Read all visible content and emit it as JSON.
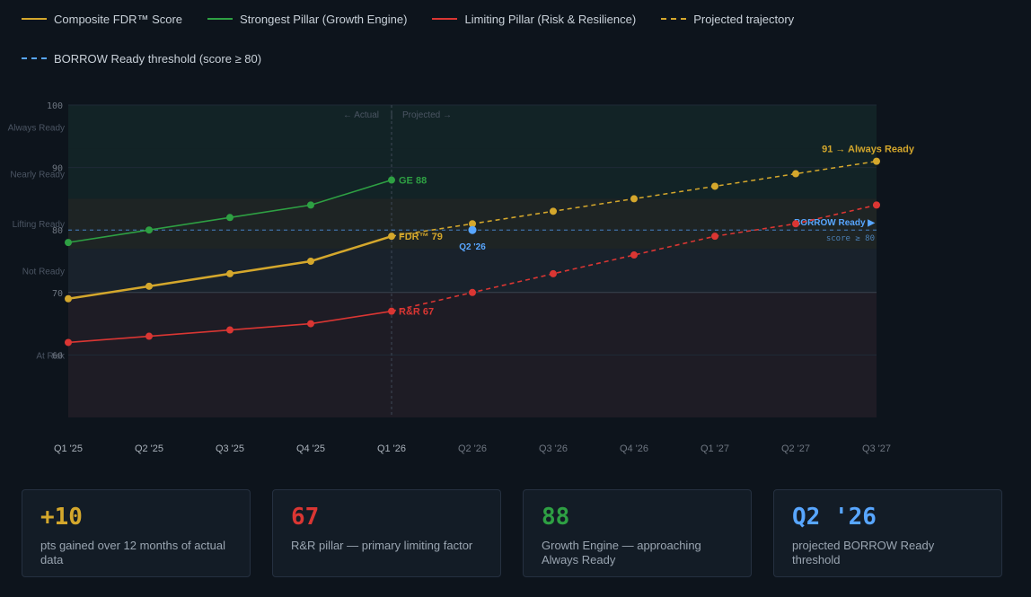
{
  "legend": [
    {
      "label": "Composite FDR™ Score",
      "color": "#d4a72c",
      "style": "solid"
    },
    {
      "label": "Strongest Pillar (Growth Engine)",
      "color": "#2ea043",
      "style": "solid"
    },
    {
      "label": "Limiting Pillar (Risk & Resilience)",
      "color": "#da3633",
      "style": "solid"
    },
    {
      "label": "Projected trajectory",
      "color": "#d4a72c",
      "style": "dashed"
    },
    {
      "label": "BORROW Ready threshold (score ≥ 80)",
      "color": "#58a6ff",
      "style": "dashed"
    }
  ],
  "chart_data": {
    "type": "line",
    "categories": [
      "Q1 '25",
      "Q2 '25",
      "Q3 '25",
      "Q4 '25",
      "Q1 '26",
      "Q2 '26",
      "Q3 '26",
      "Q4 '26",
      "Q1 '27",
      "Q2 '27",
      "Q3 '27"
    ],
    "ylim": [
      50,
      100
    ],
    "yticks": [
      60,
      70,
      80,
      90,
      100
    ],
    "grid": true,
    "bands": [
      {
        "label": "Always Ready",
        "from": 93,
        "to": 100,
        "color": "#2ea043"
      },
      {
        "label": "Nearly Ready",
        "from": 85,
        "to": 93,
        "color": "#2ea043"
      },
      {
        "label": "Lifting Ready",
        "from": 77,
        "to": 85,
        "color": "#d4a72c"
      },
      {
        "label": "Not Ready",
        "from": 70,
        "to": 77,
        "color": "#8b949e"
      },
      {
        "label": "At Risk",
        "from": 50,
        "to": 70,
        "color": "#da3633"
      }
    ],
    "divider_label_left": "← Actual",
    "divider_label_right": "Projected →",
    "divider_sep": "|",
    "series": [
      {
        "key": "composite",
        "color": "#d4a72c",
        "values": [
          69,
          71,
          73,
          75,
          79,
          null,
          null,
          null,
          null,
          null,
          null
        ]
      },
      {
        "key": "growth",
        "color": "#2ea043",
        "values": [
          78,
          80,
          82,
          84,
          88,
          null,
          null,
          null,
          null,
          null,
          null
        ]
      },
      {
        "key": "risk",
        "color": "#da3633",
        "values": [
          62,
          63,
          64,
          65,
          67,
          null,
          null,
          null,
          null,
          null,
          null
        ]
      },
      {
        "key": "composite_proj",
        "color": "#d4a72c",
        "dashed": true,
        "values": [
          null,
          null,
          null,
          null,
          79,
          81,
          83,
          85,
          87,
          89,
          91
        ]
      },
      {
        "key": "risk_proj",
        "color": "#da3633",
        "dashed": true,
        "values": [
          null,
          null,
          null,
          null,
          67,
          70,
          73,
          76,
          79,
          81,
          84
        ]
      }
    ],
    "threshold": {
      "value": 80,
      "color": "#58a6ff",
      "label": "BORROW Ready ▶",
      "sublabel": "score ≥ 80"
    },
    "marker": {
      "x_index": 5,
      "value": 80,
      "label": "Q2 '26",
      "color": "#58a6ff"
    },
    "annotations": [
      {
        "text": "GE 88",
        "x_index": 4,
        "value": 88,
        "color": "#2ea043"
      },
      {
        "text": "FDR™ 79",
        "x_index": 4,
        "value": 79,
        "color": "#d4a72c"
      },
      {
        "text": "R&R 67",
        "x_index": 4,
        "value": 67,
        "color": "#da3633"
      },
      {
        "text": "91 → Always Ready",
        "x_index": 10,
        "value": 91,
        "color": "#d4a72c"
      }
    ]
  },
  "cards": [
    {
      "value": "+10",
      "label": "pts gained over 12 months of actual data",
      "color": "#d4a72c"
    },
    {
      "value": "67",
      "label": "R&R pillar — primary limiting factor",
      "color": "#da3633"
    },
    {
      "value": "88",
      "label": "Growth Engine — approaching Always Ready",
      "color": "#2ea043"
    },
    {
      "value": "Q2 '26",
      "label": "projected BORROW Ready threshold",
      "color": "#58a6ff"
    }
  ]
}
